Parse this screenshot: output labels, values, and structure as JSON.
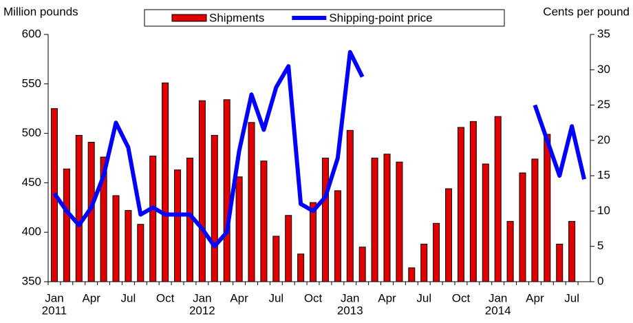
{
  "chart_data": {
    "type": "bar-line",
    "y_label": "Million pounds",
    "y2_label": "Cents per pound",
    "categories": [
      "Jan",
      null,
      null,
      "Apr",
      null,
      null,
      "Jul",
      null,
      null,
      "Oct",
      null,
      null,
      "Jan",
      null,
      null,
      "Apr",
      null,
      null,
      "Jul",
      null,
      null,
      "Oct",
      null,
      null,
      "Jan",
      null,
      null,
      "Apr",
      null,
      null,
      "Jul",
      null,
      null,
      "Oct",
      null,
      null,
      "Jan",
      null,
      null,
      "Apr",
      null,
      null,
      "Jul",
      null
    ],
    "years": [
      "2011",
      null,
      null,
      null,
      null,
      null,
      null,
      null,
      null,
      null,
      null,
      null,
      "2012",
      null,
      null,
      null,
      null,
      null,
      null,
      null,
      null,
      null,
      null,
      null,
      "2013",
      null,
      null,
      null,
      null,
      null,
      null,
      null,
      null,
      null,
      null,
      null,
      "2014",
      null,
      null,
      null,
      null,
      null,
      null,
      null
    ],
    "series": [
      {
        "name": "Shipments",
        "type": "bar",
        "color": "#e00000",
        "values": [
          525,
          464,
          498,
          491,
          476,
          437,
          422,
          408,
          477,
          551,
          463,
          475,
          533,
          498,
          534,
          456,
          511,
          472,
          396,
          417,
          378,
          430,
          475,
          442,
          503,
          385,
          475,
          479,
          471,
          364,
          388,
          409,
          444,
          506,
          512,
          469,
          517,
          411,
          460,
          474,
          499,
          388,
          411,
          null
        ]
      },
      {
        "name": "Shipping-point price",
        "type": "line",
        "axis": "y2",
        "color": "#0000ff",
        "values": [
          12.5,
          10,
          8,
          10.5,
          15,
          22.5,
          19,
          9.5,
          10.5,
          9.5,
          9.5,
          9.5,
          7.5,
          5,
          7,
          18.5,
          26.5,
          21.5,
          27.5,
          30.5,
          11,
          10,
          12,
          17.5,
          32.5,
          29,
          null,
          null,
          null,
          null,
          null,
          null,
          null,
          null,
          null,
          null,
          null,
          null,
          null,
          25,
          20,
          15,
          22,
          14.5
        ]
      }
    ],
    "ylim": [
      350,
      600
    ],
    "yticks": [
      350,
      400,
      450,
      500,
      550,
      600
    ],
    "y2lim": [
      0,
      35
    ],
    "y2ticks": [
      0,
      5,
      10,
      15,
      20,
      25,
      30,
      35
    ],
    "legend": "top"
  }
}
